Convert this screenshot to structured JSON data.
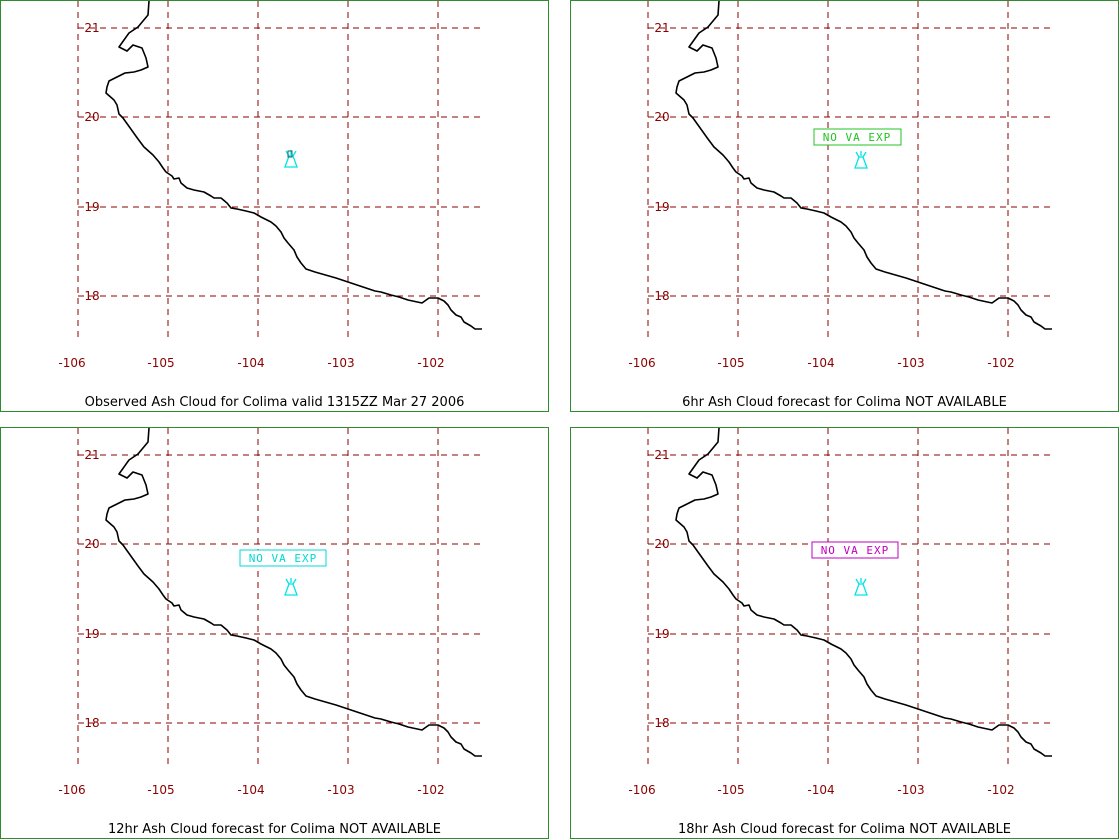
{
  "colors": {
    "grid": "#8b0000",
    "coast": "#000000",
    "border": "#2e8b2e",
    "volcano": "#00e5e5"
  },
  "axes": {
    "lat_labels": [
      "21",
      "20",
      "19",
      "18"
    ],
    "lon_labels": [
      "-106",
      "-105",
      "-104",
      "-103",
      "-102"
    ]
  },
  "panels": [
    {
      "caption": "Observed Ash Cloud for Colima valid 1315ZZ Mar 27 2006",
      "annotation": null
    },
    {
      "caption": "6hr Ash Cloud forecast for Colima NOT AVAILABLE",
      "annotation": {
        "text": "NO VA EXP",
        "color": "#22c322"
      }
    },
    {
      "caption": "12hr Ash Cloud forecast for Colima NOT AVAILABLE",
      "annotation": {
        "text": "NO VA EXP",
        "color": "#00d8d8"
      }
    },
    {
      "caption": "18hr Ash Cloud forecast for Colima NOT AVAILABLE",
      "annotation": {
        "text": "NO VA EXP",
        "color": "#c000c0"
      }
    }
  ]
}
